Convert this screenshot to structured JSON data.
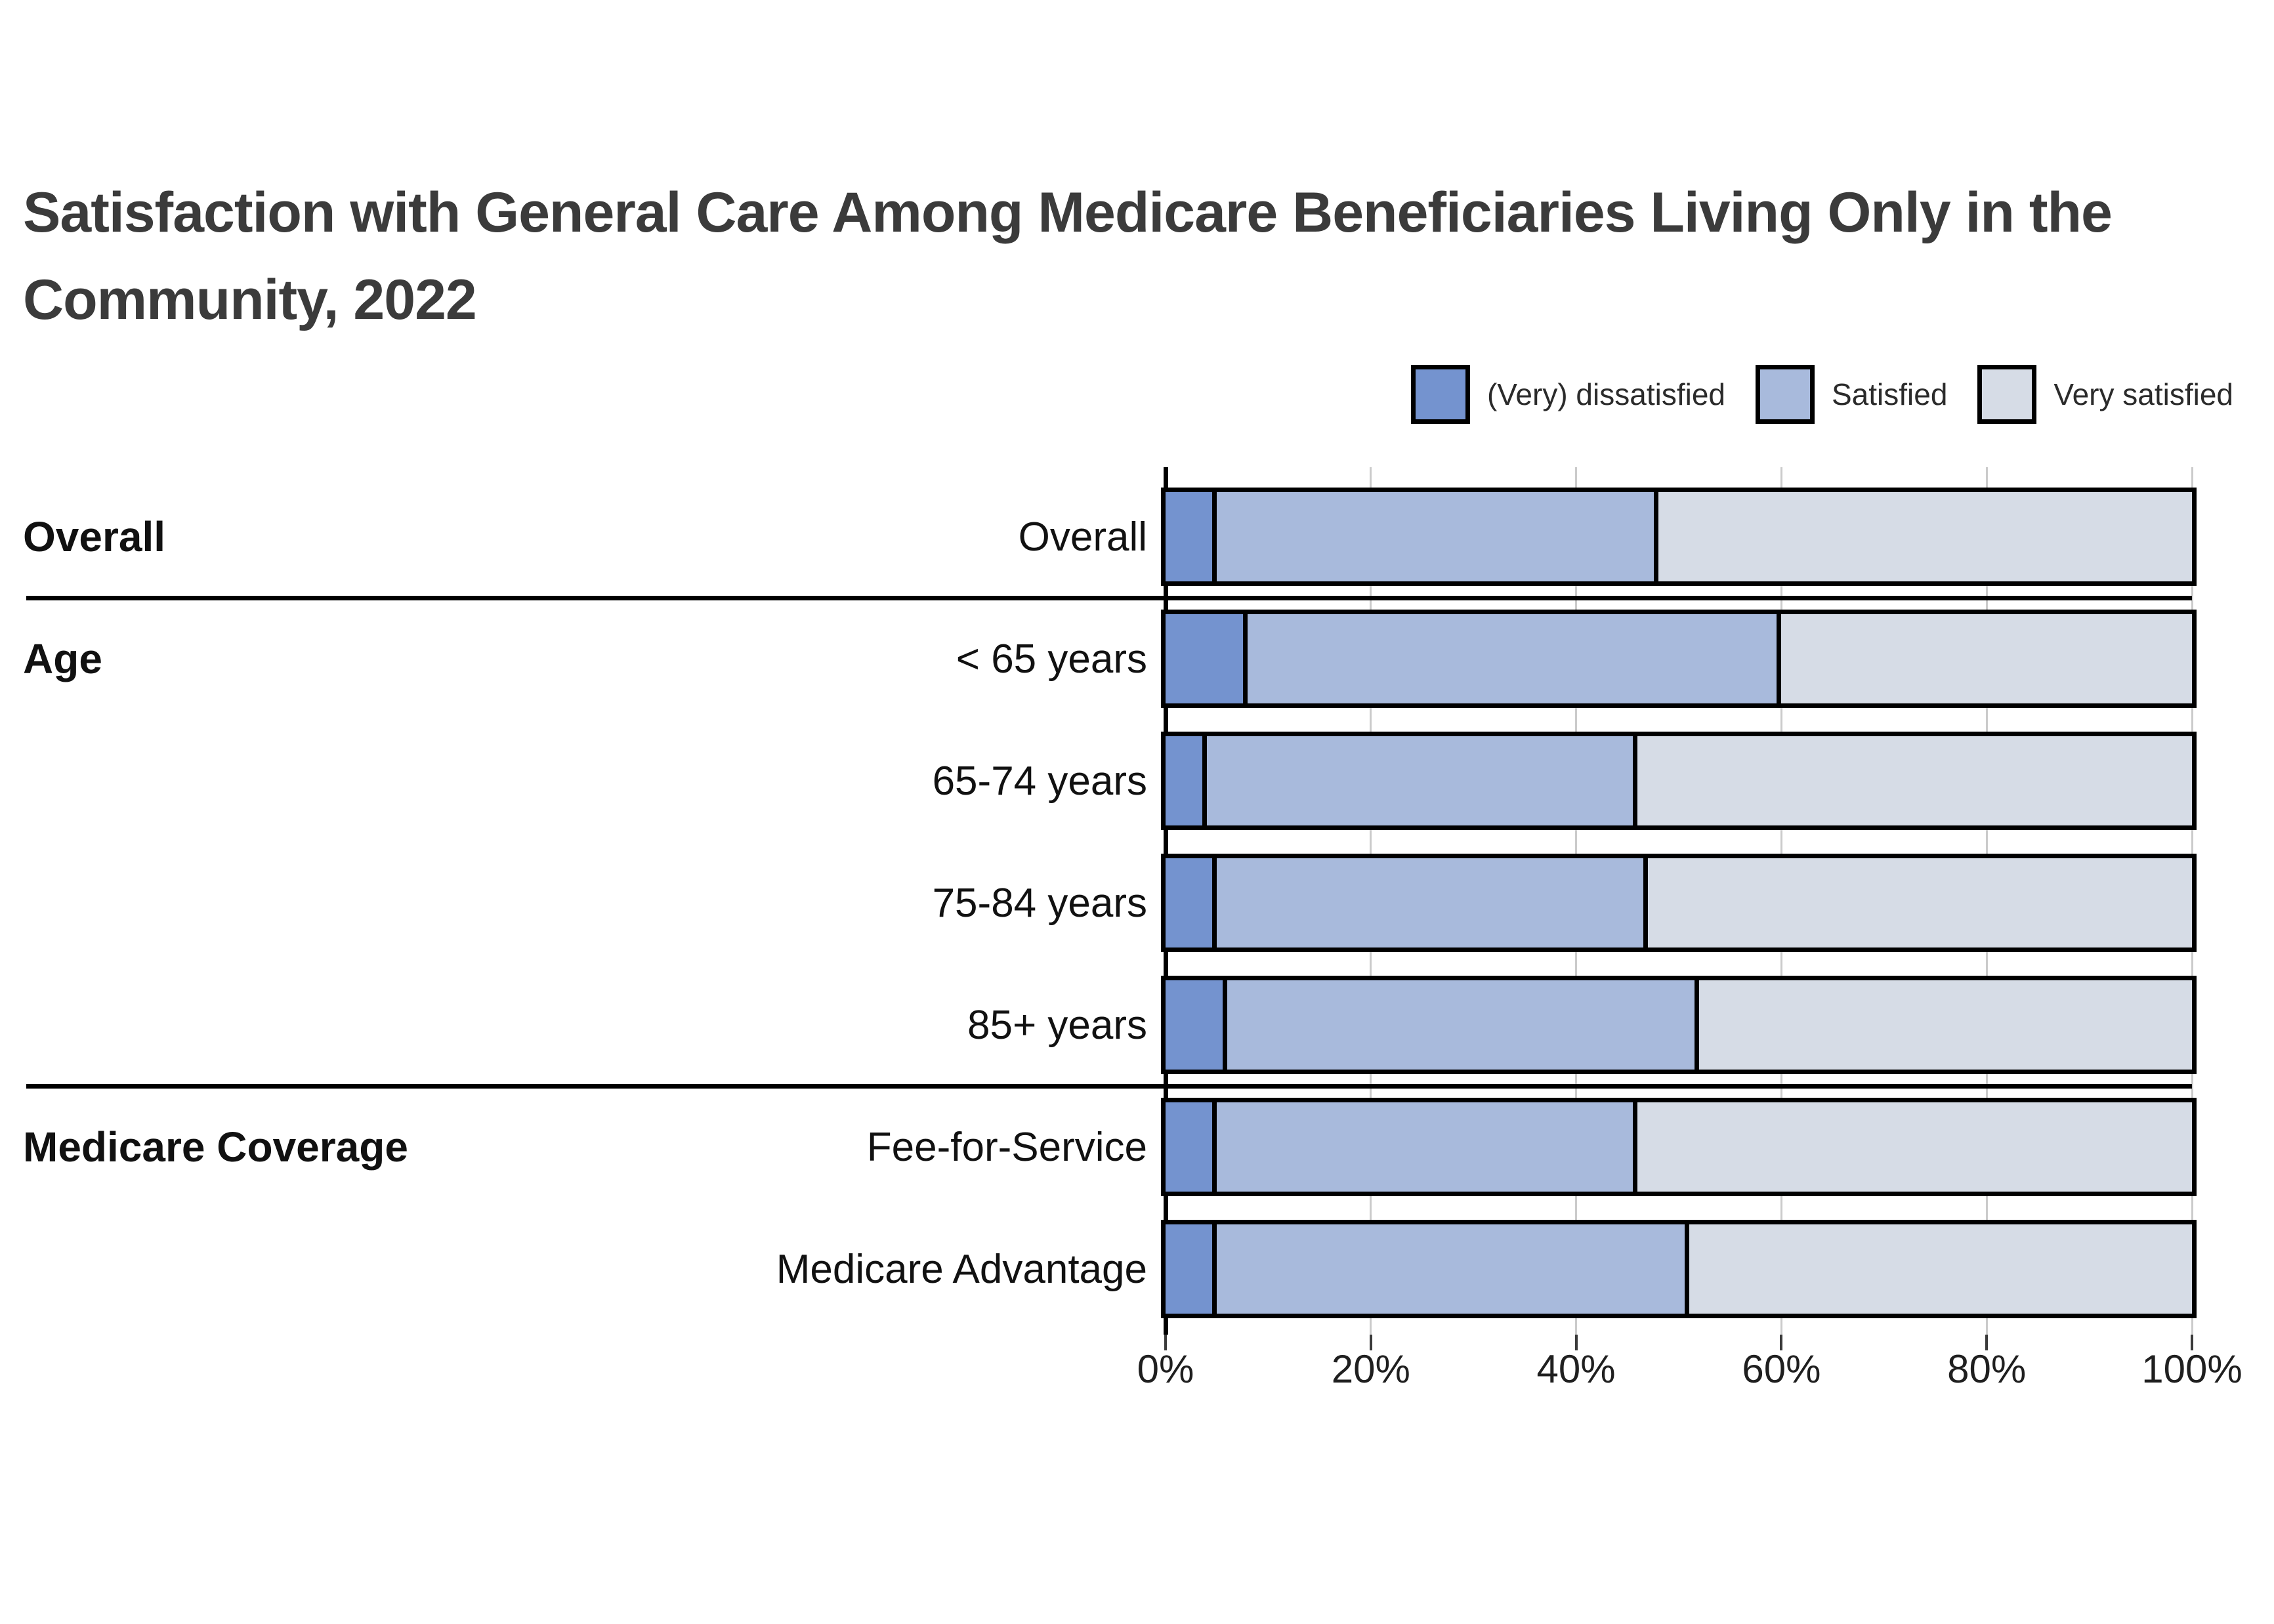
{
  "title": {
    "line1": "Satisfaction with General Care Among Medicare Beneficiaries Living Only in the",
    "line2": "Community, 2022"
  },
  "legend": {
    "items": [
      {
        "label": "(Very) dissatisfied",
        "color": "#7493CF"
      },
      {
        "label": "Satisfied",
        "color": "#A8BADC"
      },
      {
        "label": "Very satisfied",
        "color": "#D6DCE6"
      }
    ]
  },
  "chart_data": {
    "type": "bar",
    "orientation": "horizontal",
    "stacked": true,
    "title": "Satisfaction with General Care Among Medicare Beneficiaries Living Only in the Community, 2022",
    "categories": [
      "Overall",
      "< 65 years",
      "65-74 years",
      "75-84 years",
      "85+ years",
      "Fee-for-Service",
      "Medicare Advantage"
    ],
    "groups": [
      {
        "label": "Overall",
        "rows": [
          "Overall"
        ]
      },
      {
        "label": "Age",
        "rows": [
          "< 65 years",
          "65-74 years",
          "75-84 years",
          "85+ years"
        ]
      },
      {
        "label": "Medicare Coverage",
        "rows": [
          "Fee-for-Service",
          "Medicare Advantage"
        ]
      }
    ],
    "series": [
      {
        "name": "(Very) dissatisfied",
        "color": "#7493CF",
        "values": [
          5,
          8,
          4,
          5,
          6,
          5,
          5
        ]
      },
      {
        "name": "Satisfied",
        "color": "#A8BADC",
        "values": [
          43,
          52,
          42,
          42,
          46,
          41,
          46
        ]
      },
      {
        "name": "Very satisfied",
        "color": "#D6DCE6",
        "values": [
          52,
          40,
          54,
          53,
          48,
          54,
          49
        ]
      }
    ],
    "unit": "%",
    "xlabel": "",
    "ylabel": "",
    "xlim": [
      0,
      100
    ],
    "x_ticks": [
      "0%",
      "20%",
      "40%",
      "60%",
      "80%",
      "100%"
    ],
    "grid": true,
    "legend_position": "top-right",
    "colors": {
      "bar_border": "#000000",
      "gridline": "#CBCBCB",
      "tick": "#3A3A3A",
      "title_text": "#3B3B3B",
      "label_text": "#111111"
    }
  }
}
